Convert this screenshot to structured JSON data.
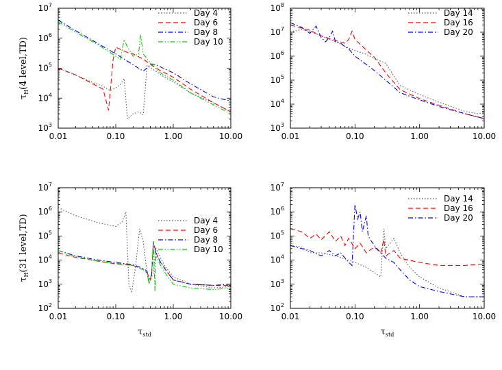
{
  "chart_data": [
    {
      "type": "line",
      "panel": "top-left",
      "ylabel": "τ_H(4 level,TD)",
      "ylabel_main": "τ",
      "ylabel_sub": "H",
      "ylabel_rest": "(4 level,TD)",
      "xlabel": "",
      "xscale": "log",
      "yscale": "log",
      "xlim": [
        0.01,
        10
      ],
      "ylim": [
        1000,
        10000000
      ],
      "xticks": [
        "0.01",
        "0.10",
        "1.00",
        "10.00"
      ],
      "yticks": [
        3,
        4,
        5,
        6,
        7
      ],
      "legend_position": "top-right",
      "series": [
        {
          "name": "Day 4",
          "color": "#555555",
          "dash": "dot",
          "x": [
            0.01,
            0.02,
            0.04,
            0.06,
            0.08,
            0.1,
            0.12,
            0.14,
            0.16,
            0.2,
            0.25,
            0.3,
            0.35,
            0.45,
            0.7,
            1,
            2,
            5,
            10
          ],
          "y": [
            100000,
            60000,
            33000,
            25000,
            18000,
            22000,
            28000,
            45000,
            2000,
            3000,
            3500,
            2800,
            120000,
            90000,
            50000,
            35000,
            15000,
            7000,
            3500
          ]
        },
        {
          "name": "Day 6",
          "color": "#ff0000",
          "dash": "dash",
          "x": [
            0.01,
            0.02,
            0.04,
            0.06,
            0.075,
            0.09,
            0.1,
            0.15,
            0.2,
            0.3,
            0.5,
            1,
            2,
            5,
            10
          ],
          "y": [
            100000,
            60000,
            30000,
            20000,
            4000,
            200000,
            500000,
            350000,
            300000,
            200000,
            100000,
            50000,
            20000,
            7000,
            3500
          ]
        },
        {
          "name": "Day 8",
          "color": "#0000ff",
          "dash": "dashdot",
          "x": [
            0.01,
            0.02,
            0.05,
            0.1,
            0.2,
            0.3,
            0.35,
            0.4,
            0.5,
            1,
            2,
            5,
            10
          ],
          "y": [
            4000000,
            1800000,
            650000,
            300000,
            130000,
            80000,
            100000,
            140000,
            130000,
            70000,
            30000,
            11000,
            8000
          ]
        },
        {
          "name": "Day 10",
          "color": "#00cc00",
          "dash": "dashdotdot",
          "x": [
            0.01,
            0.02,
            0.05,
            0.1,
            0.12,
            0.14,
            0.16,
            0.2,
            0.25,
            0.27,
            0.3,
            0.4,
            0.6,
            1,
            2,
            5,
            10
          ],
          "y": [
            3500000,
            1600000,
            600000,
            250000,
            200000,
            900000,
            500000,
            250000,
            300000,
            1300000,
            300000,
            150000,
            70000,
            40000,
            15000,
            6000,
            3000
          ]
        }
      ]
    },
    {
      "type": "line",
      "panel": "top-right",
      "ylabel": "",
      "xlabel": "",
      "xscale": "log",
      "yscale": "log",
      "xlim": [
        0.01,
        10
      ],
      "ylim": [
        1000,
        100000000
      ],
      "xticks": [
        "0.01",
        "0.10",
        "1.00",
        "10.00"
      ],
      "yticks": [
        3,
        4,
        5,
        6,
        7,
        8
      ],
      "legend_position": "top-right",
      "series": [
        {
          "name": "Day 14",
          "color": "#555555",
          "dash": "dot",
          "x": [
            0.01,
            0.015,
            0.02,
            0.03,
            0.05,
            0.08,
            0.1,
            0.15,
            0.2,
            0.3,
            0.5,
            1,
            2,
            5,
            8,
            10
          ],
          "y": [
            10000000,
            13000000,
            11000000,
            7000000,
            4000000,
            2200000,
            1700000,
            1200000,
            800000,
            500000,
            60000,
            25000,
            12000,
            5000,
            4000,
            4500
          ]
        },
        {
          "name": "Day 16",
          "color": "#ff0000",
          "dash": "dash",
          "x": [
            0.01,
            0.02,
            0.03,
            0.05,
            0.07,
            0.08,
            0.09,
            0.1,
            0.15,
            0.2,
            0.3,
            0.5,
            1,
            2,
            5,
            10
          ],
          "y": [
            20000000,
            12000000,
            7000000,
            4500000,
            3500000,
            5000000,
            11000000,
            5000000,
            1800000,
            900000,
            200000,
            40000,
            17000,
            9000,
            4000,
            2500
          ]
        },
        {
          "name": "Day 20",
          "color": "#0000ff",
          "dash": "dashdot",
          "x": [
            0.01,
            0.015,
            0.02,
            0.025,
            0.03,
            0.035,
            0.04,
            0.045,
            0.05,
            0.06,
            0.07,
            0.08,
            0.1,
            0.15,
            0.2,
            0.3,
            0.5,
            1,
            2,
            5,
            10
          ],
          "y": [
            25000000,
            16000000,
            9000000,
            18000000,
            6000000,
            4000000,
            6000000,
            11000000,
            4000000,
            3500000,
            2500000,
            2000000,
            1000000,
            450000,
            250000,
            100000,
            30000,
            15000,
            8000,
            4000,
            2500
          ]
        }
      ]
    },
    {
      "type": "line",
      "panel": "bottom-left",
      "ylabel": "τ_H(31 level,TD)",
      "ylabel_main": "τ",
      "ylabel_sub": "H",
      "ylabel_rest": "(31 level,TD)",
      "xlabel": "τ_std",
      "xlabel_main": "τ",
      "xlabel_sub": "std",
      "xscale": "log",
      "yscale": "log",
      "xlim": [
        0.01,
        10
      ],
      "ylim": [
        100,
        10000000
      ],
      "xticks": [
        "0.01",
        "0.10",
        "1.00",
        "10.00"
      ],
      "yticks": [
        2,
        3,
        4,
        5,
        6,
        7
      ],
      "legend_position": "center-right",
      "series": [
        {
          "name": "Day 4",
          "color": "#555555",
          "dash": "dot",
          "x": [
            0.01,
            0.02,
            0.05,
            0.1,
            0.13,
            0.15,
            0.17,
            0.19,
            0.22,
            0.26,
            0.3,
            0.35,
            0.4,
            0.45,
            0.5,
            0.7,
            1,
            2,
            5,
            10
          ],
          "y": [
            1500000,
            700000,
            350000,
            250000,
            400000,
            1000000,
            800,
            500,
            5000,
            200000,
            60000,
            3000,
            1500,
            3000,
            30000,
            6000,
            2000,
            1000,
            700,
            800
          ]
        },
        {
          "name": "Day 6",
          "color": "#ff0000",
          "dash": "dash",
          "x": [
            0.01,
            0.02,
            0.05,
            0.1,
            0.2,
            0.3,
            0.35,
            0.4,
            0.42,
            0.45,
            0.5,
            0.6,
            0.8,
            1,
            2,
            5,
            10
          ],
          "y": [
            20000,
            13000,
            9000,
            7000,
            6000,
            4000,
            3000,
            1500,
            2500,
            60000,
            20000,
            8000,
            3000,
            1500,
            1000,
            900,
            900
          ]
        },
        {
          "name": "Day 8",
          "color": "#0000ff",
          "dash": "dashdot",
          "x": [
            0.01,
            0.02,
            0.05,
            0.1,
            0.2,
            0.3,
            0.35,
            0.38,
            0.42,
            0.45,
            0.5,
            0.6,
            0.8,
            1,
            2,
            5,
            10
          ],
          "y": [
            25000,
            15000,
            10000,
            8000,
            6500,
            4500,
            3500,
            1200,
            2500,
            50000,
            20000,
            8000,
            3000,
            1500,
            1000,
            900,
            1000
          ]
        },
        {
          "name": "Day 10",
          "color": "#00cc00",
          "dash": "dashdotdot",
          "x": [
            0.01,
            0.02,
            0.05,
            0.1,
            0.2,
            0.3,
            0.35,
            0.38,
            0.42,
            0.45,
            0.48,
            0.5,
            0.6,
            0.8,
            1,
            2,
            5,
            10
          ],
          "y": [
            25000,
            14000,
            9000,
            7500,
            6000,
            4000,
            3000,
            1000,
            3000,
            60000,
            500,
            15000,
            6000,
            2000,
            1000,
            700,
            600,
            700
          ]
        }
      ]
    },
    {
      "type": "line",
      "panel": "bottom-right",
      "ylabel": "",
      "xlabel": "τ_std",
      "xlabel_main": "τ",
      "xlabel_sub": "std",
      "xscale": "log",
      "yscale": "log",
      "xlim": [
        0.01,
        10
      ],
      "ylim": [
        100,
        10000000
      ],
      "xticks": [
        "0.01",
        "0.10",
        "1.00",
        "10.00"
      ],
      "yticks": [
        2,
        3,
        4,
        5,
        6,
        7
      ],
      "legend_position": "top-right",
      "series": [
        {
          "name": "Day 14",
          "color": "#555555",
          "dash": "dot",
          "x": [
            0.01,
            0.015,
            0.02,
            0.03,
            0.05,
            0.08,
            0.1,
            0.15,
            0.2,
            0.25,
            0.28,
            0.3,
            0.35,
            0.4,
            0.5,
            0.7,
            1,
            2,
            5,
            10
          ],
          "y": [
            40000,
            35000,
            20000,
            20000,
            15000,
            10000,
            8000,
            5000,
            3000,
            2000,
            200000,
            30000,
            50000,
            80000,
            20000,
            5000,
            2000,
            700,
            300,
            300
          ]
        },
        {
          "name": "Day 16",
          "color": "#ff0000",
          "dash": "dash",
          "x": [
            0.01,
            0.015,
            0.02,
            0.025,
            0.03,
            0.04,
            0.05,
            0.06,
            0.07,
            0.08,
            0.1,
            0.12,
            0.15,
            0.2,
            0.25,
            0.28,
            0.3,
            0.4,
            0.5,
            1,
            2,
            5,
            10
          ],
          "y": [
            200000,
            150000,
            80000,
            120000,
            70000,
            150000,
            60000,
            100000,
            40000,
            80000,
            30000,
            50000,
            20000,
            35000,
            20000,
            70000,
            15000,
            25000,
            12000,
            8000,
            6000,
            6000,
            7000
          ]
        },
        {
          "name": "Day 20",
          "color": "#0000ff",
          "dash": "dashdot",
          "x": [
            0.01,
            0.015,
            0.02,
            0.03,
            0.04,
            0.05,
            0.06,
            0.08,
            0.09,
            0.1,
            0.11,
            0.12,
            0.13,
            0.15,
            0.16,
            0.18,
            0.2,
            0.25,
            0.3,
            0.4,
            0.5,
            0.7,
            1,
            2,
            5,
            10
          ],
          "y": [
            40000,
            30000,
            25000,
            15000,
            25000,
            15000,
            20000,
            8000,
            6000,
            2000000,
            500000,
            1000000,
            150000,
            700000,
            100000,
            60000,
            40000,
            20000,
            12000,
            8000,
            4000,
            1500,
            800,
            500,
            300,
            300
          ]
        }
      ]
    }
  ]
}
